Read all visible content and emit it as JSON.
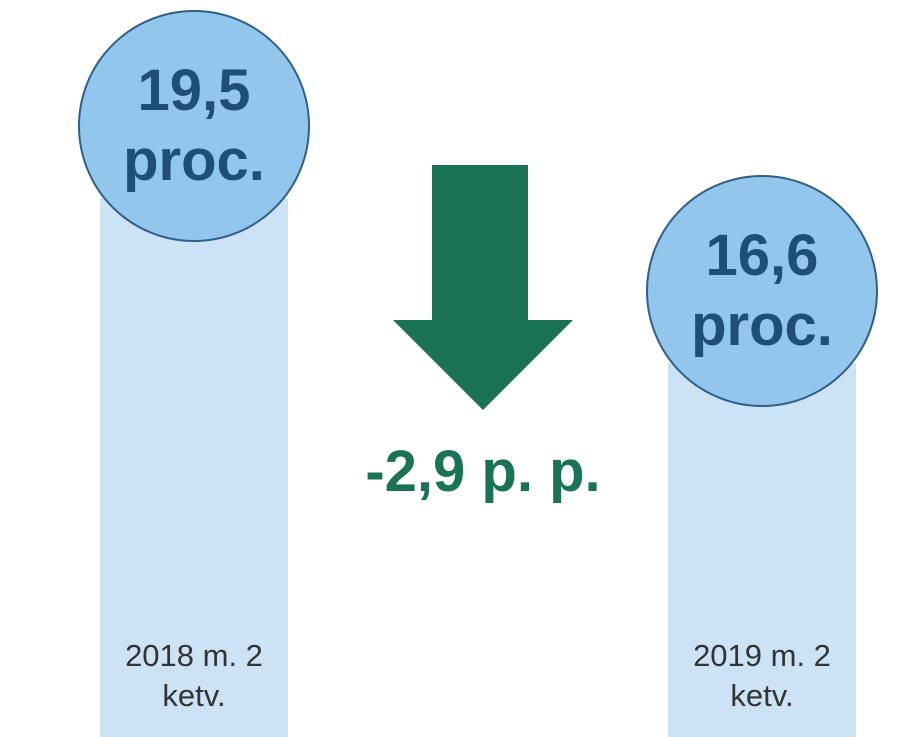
{
  "chart_data": {
    "type": "bar",
    "categories": [
      "2018 m. 2 ketv.",
      "2019 m. 2 ketv."
    ],
    "values": [
      19.5,
      16.6
    ],
    "value_labels": [
      "19,5 proc.",
      "16,6 proc."
    ],
    "annotation": "-2,9 p. p.",
    "color": "#cce3f5",
    "label_color": "#93c6ec",
    "ylim": [
      10,
      23
    ]
  }
}
